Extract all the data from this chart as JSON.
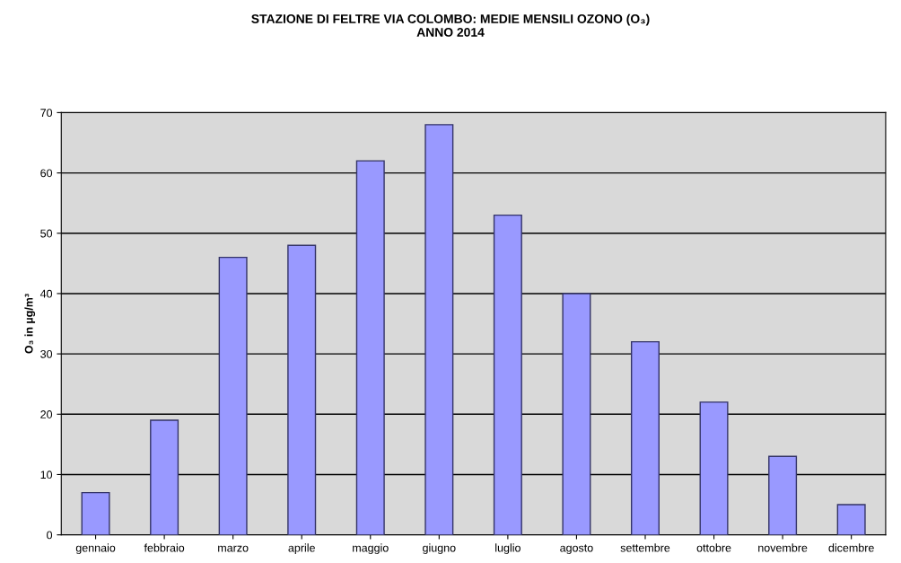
{
  "chart_data": {
    "type": "bar",
    "title": "STAZIONE DI FELTRE VIA COLOMBO: MEDIE MENSILI OZONO (O₃)\nANNO 2014",
    "ylabel": "O₃ in µg/m³",
    "categories": [
      "gennaio",
      "febbraio",
      "marzo",
      "aprile",
      "maggio",
      "giugno",
      "luglio",
      "agosto",
      "settembre",
      "ottobre",
      "novembre",
      "dicembre"
    ],
    "values": [
      7,
      19,
      46,
      48,
      62,
      68,
      53,
      40,
      32,
      22,
      13,
      5
    ],
    "color": "#9999ff",
    "ylim": [
      0,
      70
    ],
    "yticks": [
      0,
      10,
      20,
      30,
      40,
      50,
      60,
      70
    ],
    "grid": "y"
  }
}
